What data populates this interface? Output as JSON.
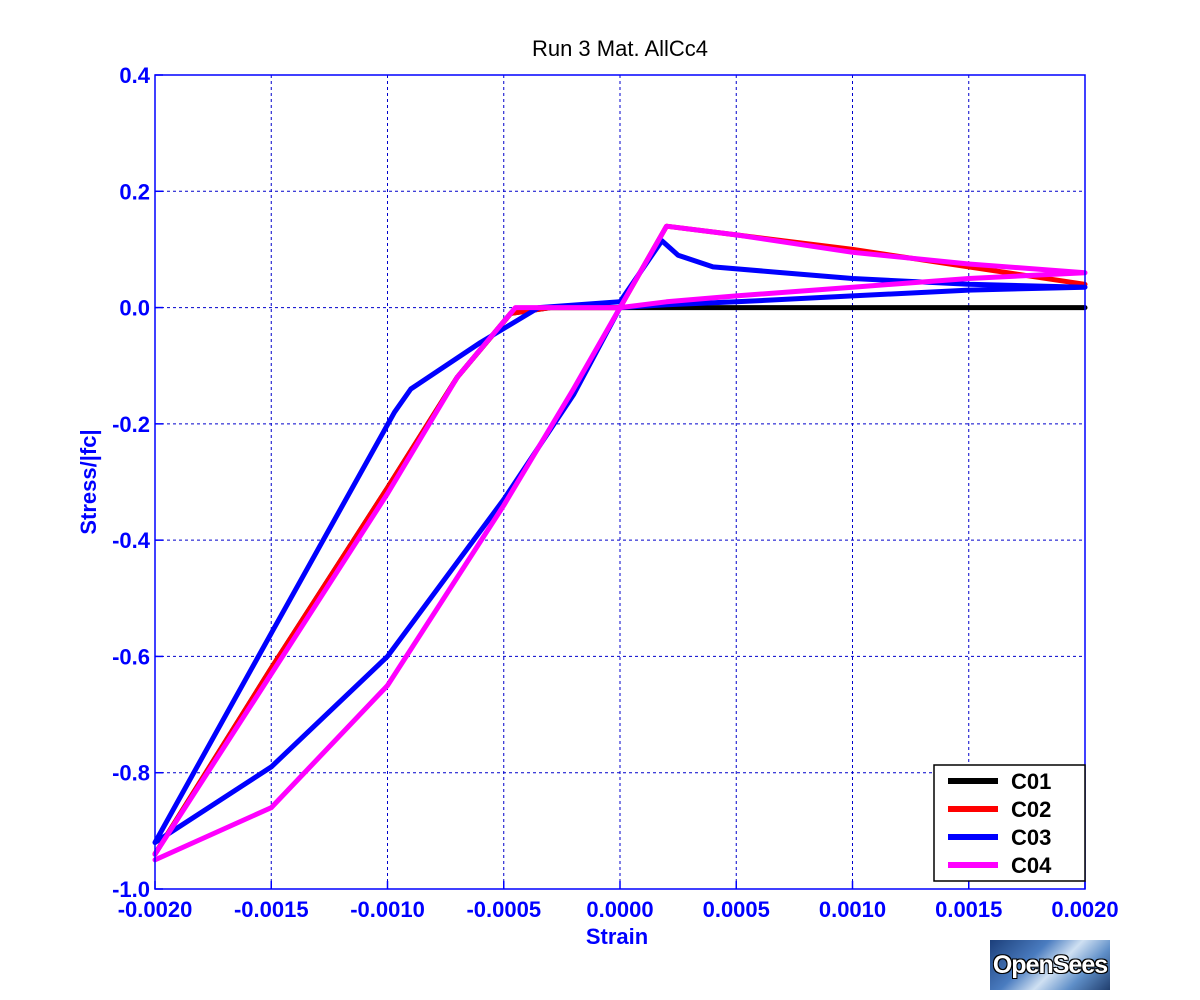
{
  "chart_data": {
    "type": "line",
    "title": "Run 3   Mat. AllCc4",
    "xlabel": "Strain",
    "ylabel": "Stress/|fc|",
    "xlim": [
      -0.002,
      0.002
    ],
    "ylim": [
      -1.0,
      0.4
    ],
    "xticks": [
      -0.002,
      -0.0015,
      -0.001,
      -0.0005,
      0.0,
      0.0005,
      0.001,
      0.0015,
      0.002
    ],
    "xtick_labels": [
      "-0.0020",
      "-0.0015",
      "-0.0010",
      "-0.0005",
      "0.0000",
      "0.0005",
      "0.0010",
      "0.0015",
      "0.0020"
    ],
    "yticks": [
      -1.0,
      -0.8,
      -0.6,
      -0.4,
      -0.2,
      0.0,
      0.2,
      0.4
    ],
    "ytick_labels": [
      "-1.0",
      "-0.8",
      "-0.6",
      "-0.4",
      "-0.2",
      "0.0",
      "0.2",
      "0.4"
    ],
    "grid": true,
    "legend_position": "bottom-right",
    "series": [
      {
        "name": "C01",
        "color": "#000000",
        "x": [
          -0.002,
          -0.0015,
          -0.001,
          -0.0007,
          -0.00047,
          -0.0003,
          0.0,
          0.0005,
          0.001,
          0.0015,
          0.002
        ],
        "y": [
          -0.94,
          -0.62,
          -0.31,
          -0.12,
          -0.01,
          0.0,
          0.0,
          0.0,
          0.0,
          0.0,
          0.0
        ]
      },
      {
        "name": "C02",
        "color": "#ff0000",
        "x": [
          -0.002,
          -0.0015,
          -0.001,
          -0.0007,
          -0.00047,
          -0.0003,
          0.0,
          0.0002,
          0.0005,
          0.001,
          0.0015,
          0.002
        ],
        "y": [
          -0.94,
          -0.62,
          -0.31,
          -0.12,
          -0.01,
          0.0,
          0.0,
          0.14,
          0.125,
          0.1,
          0.07,
          0.04
        ]
      },
      {
        "name": "C03",
        "color": "#0000ff",
        "x": [
          -0.002,
          -0.0015,
          -0.00097,
          -0.0009,
          -0.0006,
          -0.00035,
          0.0,
          0.00018,
          0.00025,
          0.0004,
          0.0007,
          0.001,
          0.0015,
          0.002,
          null,
          -0.002,
          -0.0015,
          -0.001,
          -0.0005,
          -0.0002,
          0.0,
          0.0002,
          0.0005,
          0.001,
          0.0015,
          0.002
        ],
        "y": [
          -0.92,
          -0.56,
          -0.18,
          -0.14,
          -0.06,
          0.0,
          0.01,
          0.115,
          0.09,
          0.07,
          0.06,
          0.05,
          0.04,
          0.035,
          null,
          -0.92,
          -0.79,
          -0.6,
          -0.33,
          -0.15,
          0.0,
          0.005,
          0.01,
          0.02,
          0.03,
          0.035
        ]
      },
      {
        "name": "C04",
        "color": "#ff00ff",
        "x": [
          -0.002,
          -0.0015,
          -0.001,
          -0.0007,
          -0.00045,
          -0.0003,
          0.0,
          0.0002,
          0.0005,
          0.001,
          0.0015,
          0.002,
          null,
          -0.002,
          -0.0015,
          -0.001,
          -0.0005,
          -0.0002,
          0.0,
          0.0002,
          0.0005,
          0.001,
          0.0015,
          0.002
        ],
        "y": [
          -0.94,
          -0.63,
          -0.32,
          -0.12,
          0.0,
          0.0,
          0.0,
          0.14,
          0.125,
          0.095,
          0.075,
          0.06,
          null,
          -0.95,
          -0.86,
          -0.65,
          -0.34,
          -0.14,
          0.0,
          0.01,
          0.02,
          0.035,
          0.05,
          0.06
        ]
      }
    ]
  },
  "colors": {
    "axis": "#0000ff",
    "grid": "#0000cc"
  },
  "logo": {
    "text": "OpenSees"
  }
}
